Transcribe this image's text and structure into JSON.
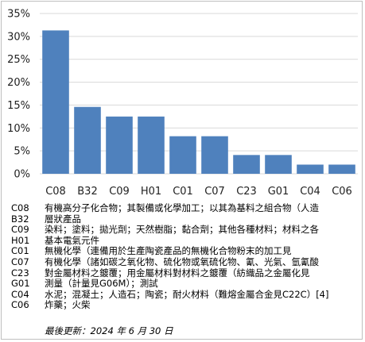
{
  "chart_data": {
    "type": "bar",
    "categories": [
      "C08",
      "B32",
      "C09",
      "H01",
      "C01",
      "C07",
      "C23",
      "G01",
      "C04",
      "C06"
    ],
    "values": [
      31.3,
      14.6,
      12.5,
      12.5,
      8.2,
      8.2,
      4.1,
      4.1,
      2.0,
      2.0
    ],
    "y_ticks": [
      "0%",
      "5%",
      "10%",
      "15%",
      "20%",
      "25%",
      "30%",
      "35%"
    ],
    "ylim": [
      0,
      35
    ],
    "grid": true,
    "bar_color": "#4f81bd",
    "grid_color": "#d9d9d9"
  },
  "legend": {
    "codes": [
      "C08",
      "B32",
      "C09",
      "H01",
      "C01",
      "C07",
      "C23",
      "G01",
      "C04",
      "C06"
    ],
    "lines": [
      {
        "code": "C08",
        "text": "有機高分子化合物；其製備或化學加工；以其為基料之組合物（人造"
      },
      {
        "code": "B32",
        "text": "層狀產品"
      },
      {
        "code": "C09",
        "text": "染料；塗料；拋光劑；天然樹脂；黏合劑；其他各種材料；材料之各"
      },
      {
        "code": "H01",
        "text": "基本電氣元件"
      },
      {
        "code": "C01",
        "text": "無機化學（連備用於生產陶瓷產品的無機化合物粉末的加工見"
      },
      {
        "code": "C07",
        "text": "有機化學（諸如碳之氧化物、硫化物或氧硫化物、氰、光氣、氫氰酸"
      },
      {
        "code": "C23",
        "text": "對金屬材料之鍍覆；用金屬材料對材料之鍍覆（紡織品之金屬化見"
      },
      {
        "code": "G01",
        "text": "測量（計量見G06M）；測試"
      },
      {
        "code": "C04",
        "text": "水泥；混凝土；人造石；陶瓷；耐火材料（難熔金屬合金見C22C）[4]"
      },
      {
        "code": "C06",
        "text": "炸藥；火柴"
      }
    ]
  },
  "updated": "最後更新：2024 年 6 月 30 日"
}
